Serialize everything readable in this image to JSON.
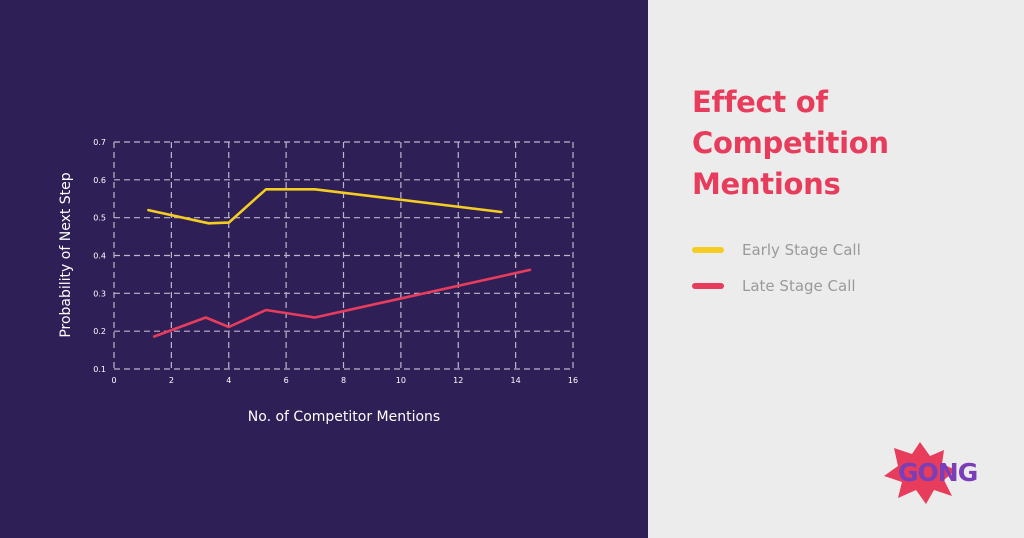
{
  "chart_data": {
    "type": "line",
    "title": "Effect of Competition Mentions",
    "title_lines": [
      "Effect of",
      "Competition",
      "Mentions"
    ],
    "xlabel": "No. of Competitor Mentions",
    "ylabel": "Probability of Next Step",
    "xlim": [
      0,
      16
    ],
    "ylim": [
      0.1,
      0.7
    ],
    "xticks": [
      "0",
      "2",
      "4",
      "6",
      "8",
      "10",
      "12",
      "14",
      "16"
    ],
    "yticks": [
      "0.1",
      "0.2",
      "0.3",
      "0.4",
      "0.5",
      "0.6",
      "0.7"
    ],
    "grid": true,
    "legend_position": "right",
    "series": [
      {
        "name": "Early Stage Call",
        "color": "#f5cd22",
        "x": [
          1.2,
          3.3,
          4.0,
          5.3,
          7.0,
          13.5
        ],
        "y": [
          0.52,
          0.485,
          0.487,
          0.575,
          0.575,
          0.515
        ]
      },
      {
        "name": "Late Stage Call",
        "color": "#e83c5c",
        "x": [
          1.4,
          3.2,
          4.0,
          5.3,
          7.0,
          14.5
        ],
        "y": [
          0.186,
          0.236,
          0.211,
          0.256,
          0.236,
          0.362
        ]
      }
    ]
  },
  "logo": {
    "text": "GONG",
    "burst_color": "#e83c5c",
    "text_color": "#7a3eb8"
  },
  "colors": {
    "background": "#2e1f56",
    "panel": "#ececec",
    "accent": "#e83c5c",
    "grid": "#bdb7cc"
  }
}
